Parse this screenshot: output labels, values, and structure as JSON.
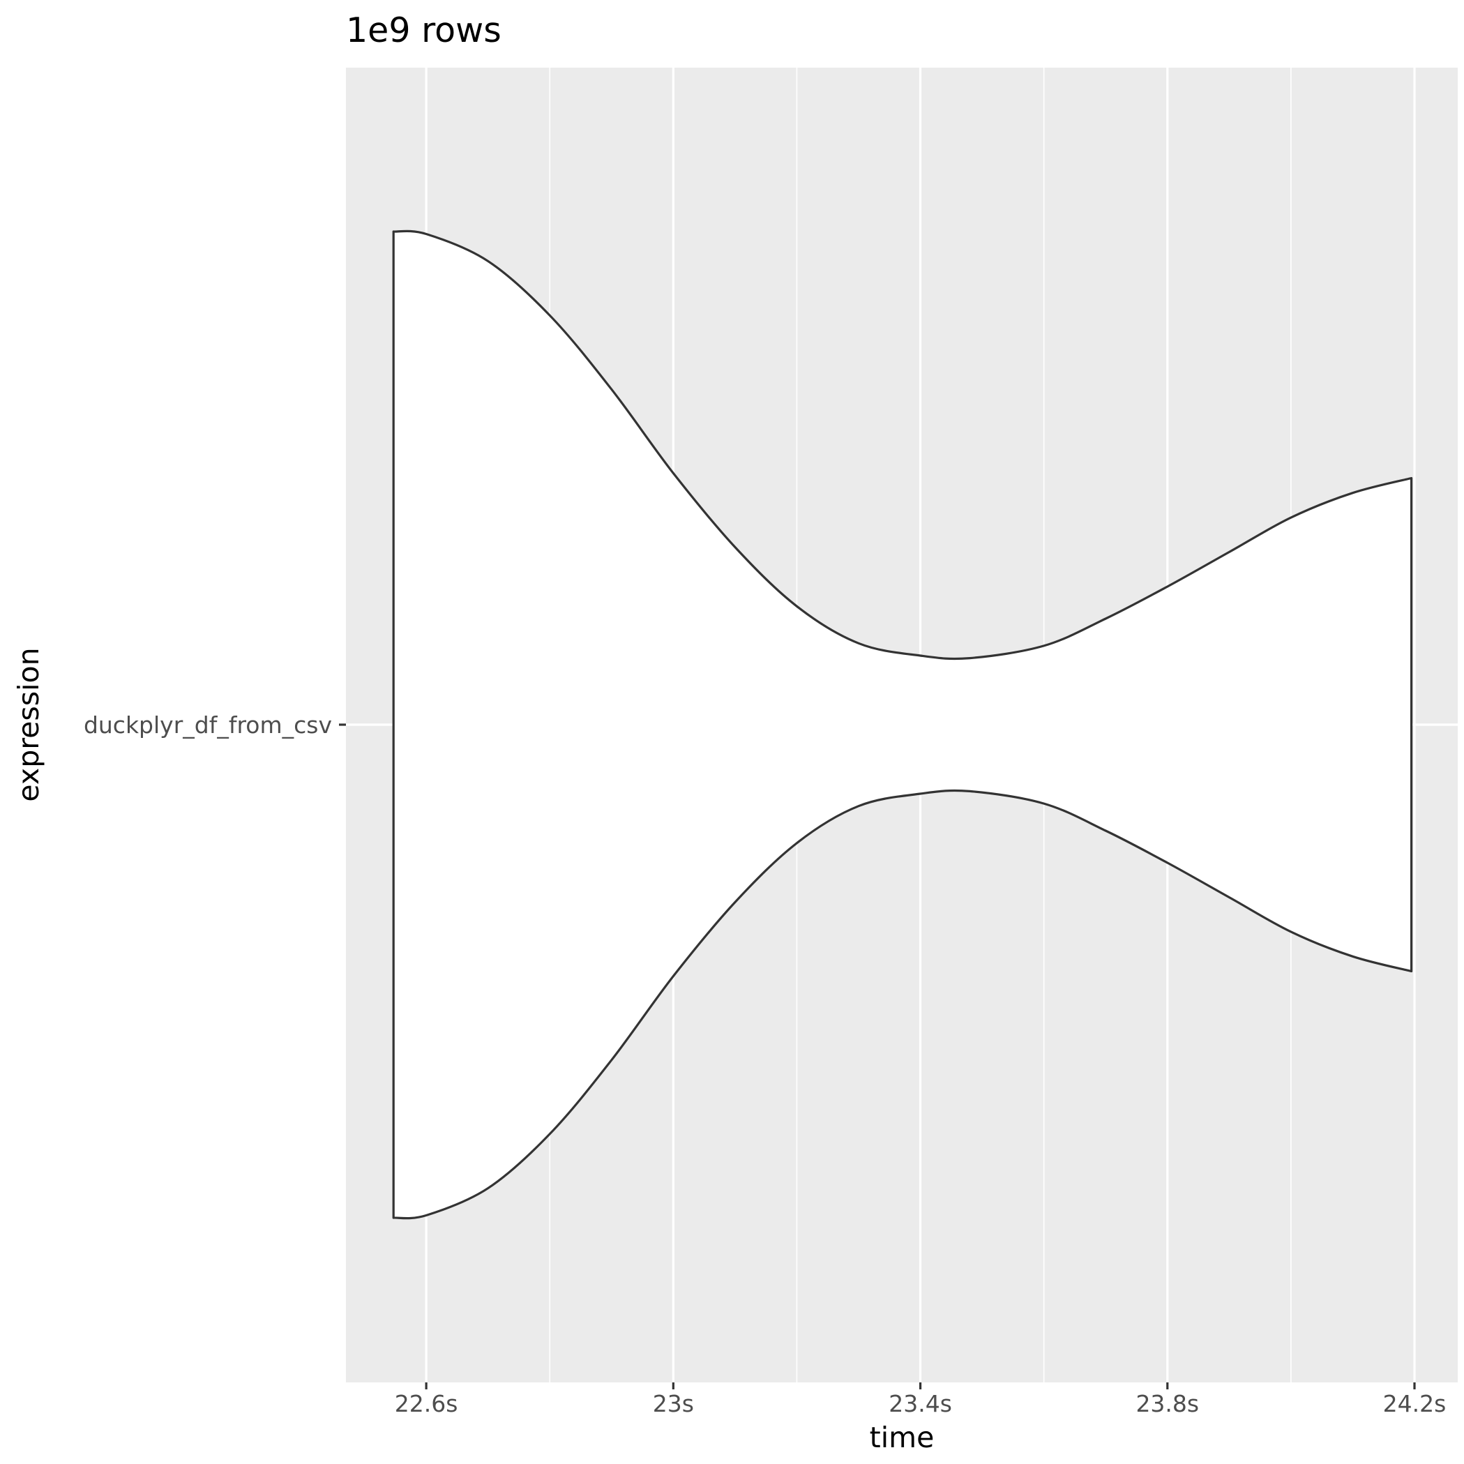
{
  "chart_data": {
    "type": "violin",
    "title": "1e9 rows",
    "xlabel": "time",
    "ylabel": "expression",
    "x_unit": "s",
    "xlim": [
      22.47,
      24.27
    ],
    "x_major_ticks": [
      22.6,
      23.0,
      23.4,
      23.8,
      24.2
    ],
    "x_minor_ticks": [
      22.8,
      23.2,
      23.6,
      24.0
    ],
    "x_tick_labels": [
      "22.6s",
      "23s",
      "23.4s",
      "23.8s",
      "24.2s"
    ],
    "categories": [
      "duckplyr_df_from_csv"
    ],
    "grid": true,
    "legend": "none",
    "series": [
      {
        "category": "duckplyr_df_from_csv",
        "x_min": 22.547,
        "x_max": 24.195,
        "density_profile": [
          {
            "x": 22.547,
            "width": 1.0
          },
          {
            "x": 22.6,
            "width": 0.995
          },
          {
            "x": 22.7,
            "width": 0.94
          },
          {
            "x": 22.8,
            "width": 0.83
          },
          {
            "x": 22.9,
            "width": 0.68
          },
          {
            "x": 23.0,
            "width": 0.51
          },
          {
            "x": 23.1,
            "width": 0.36
          },
          {
            "x": 23.2,
            "width": 0.24
          },
          {
            "x": 23.3,
            "width": 0.165
          },
          {
            "x": 23.4,
            "width": 0.14
          },
          {
            "x": 23.48,
            "width": 0.135
          },
          {
            "x": 23.6,
            "width": 0.16
          },
          {
            "x": 23.7,
            "width": 0.215
          },
          {
            "x": 23.8,
            "width": 0.28
          },
          {
            "x": 23.9,
            "width": 0.35
          },
          {
            "x": 24.0,
            "width": 0.42
          },
          {
            "x": 24.1,
            "width": 0.47
          },
          {
            "x": 24.195,
            "width": 0.5
          }
        ]
      }
    ]
  }
}
